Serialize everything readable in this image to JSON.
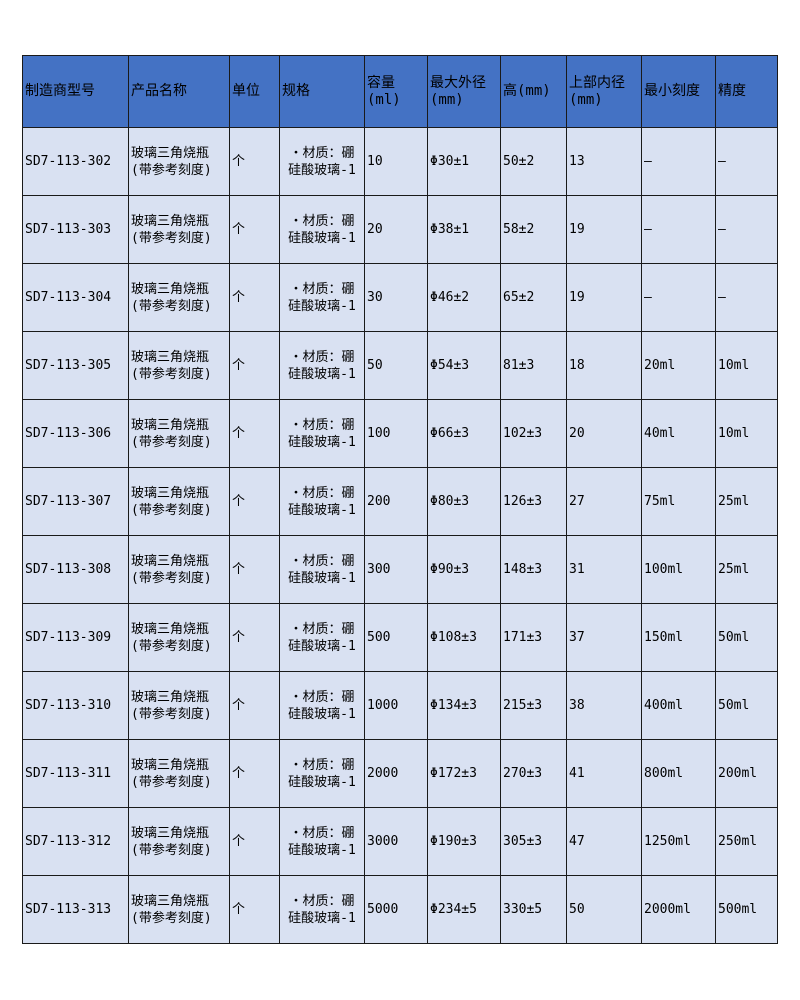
{
  "colors": {
    "header_bg": "#4472C4",
    "row_bg": "#D9E1F2"
  },
  "headers": [
    "制造商型号",
    "产品名称",
    "单位",
    "规格",
    "容量\n(ml)",
    "最大外径\n(mm)",
    "高(mm)",
    "上部内径\n(mm)",
    "最小刻度",
    "精度"
  ],
  "rows": [
    {
      "model": "SD7-113-302",
      "name": "玻璃三角烧瓶\n(带参考刻度)",
      "unit": "个",
      "spec": "・材质：硼\n硅酸玻璃-1",
      "capacity": "10",
      "od": "Φ30±1",
      "height": "50±2",
      "id": "13",
      "min_scale": "–",
      "precision": "–"
    },
    {
      "model": "SD7-113-303",
      "name": "玻璃三角烧瓶\n(带参考刻度)",
      "unit": "个",
      "spec": "・材质：硼\n硅酸玻璃-1",
      "capacity": "20",
      "od": "Φ38±1",
      "height": "58±2",
      "id": "19",
      "min_scale": "–",
      "precision": "–"
    },
    {
      "model": "SD7-113-304",
      "name": "玻璃三角烧瓶\n(带参考刻度)",
      "unit": "个",
      "spec": "・材质：硼\n硅酸玻璃-1",
      "capacity": "30",
      "od": "Φ46±2",
      "height": "65±2",
      "id": "19",
      "min_scale": "–",
      "precision": "–"
    },
    {
      "model": "SD7-113-305",
      "name": "玻璃三角烧瓶\n(带参考刻度)",
      "unit": "个",
      "spec": "・材质：硼\n硅酸玻璃-1",
      "capacity": "50",
      "od": "Φ54±3",
      "height": "81±3",
      "id": "18",
      "min_scale": "20ml",
      "precision": "10ml"
    },
    {
      "model": "SD7-113-306",
      "name": "玻璃三角烧瓶\n(带参考刻度)",
      "unit": "个",
      "spec": "・材质：硼\n硅酸玻璃-1",
      "capacity": "100",
      "od": "Φ66±3",
      "height": "102±3",
      "id": "20",
      "min_scale": "40ml",
      "precision": "10ml"
    },
    {
      "model": "SD7-113-307",
      "name": "玻璃三角烧瓶\n(带参考刻度)",
      "unit": "个",
      "spec": "・材质：硼\n硅酸玻璃-1",
      "capacity": "200",
      "od": "Φ80±3",
      "height": "126±3",
      "id": "27",
      "min_scale": "75ml",
      "precision": "25ml"
    },
    {
      "model": "SD7-113-308",
      "name": "玻璃三角烧瓶\n(带参考刻度)",
      "unit": "个",
      "spec": "・材质：硼\n硅酸玻璃-1",
      "capacity": "300",
      "od": "Φ90±3",
      "height": "148±3",
      "id": "31",
      "min_scale": "100ml",
      "precision": "25ml"
    },
    {
      "model": "SD7-113-309",
      "name": "玻璃三角烧瓶\n(带参考刻度)",
      "unit": "个",
      "spec": "・材质：硼\n硅酸玻璃-1",
      "capacity": "500",
      "od": "Φ108±3",
      "height": "171±3",
      "id": "37",
      "min_scale": "150ml",
      "precision": "50ml"
    },
    {
      "model": "SD7-113-310",
      "name": "玻璃三角烧瓶\n(带参考刻度)",
      "unit": "个",
      "spec": "・材质：硼\n硅酸玻璃-1",
      "capacity": "1000",
      "od": "Φ134±3",
      "height": "215±3",
      "id": "38",
      "min_scale": "400ml",
      "precision": "50ml"
    },
    {
      "model": "SD7-113-311",
      "name": "玻璃三角烧瓶\n(带参考刻度)",
      "unit": "个",
      "spec": "・材质：硼\n硅酸玻璃-1",
      "capacity": "2000",
      "od": "Φ172±3",
      "height": "270±3",
      "id": "41",
      "min_scale": "800ml",
      "precision": "200ml"
    },
    {
      "model": "SD7-113-312",
      "name": "玻璃三角烧瓶\n(带参考刻度)",
      "unit": "个",
      "spec": "・材质：硼\n硅酸玻璃-1",
      "capacity": "3000",
      "od": "Φ190±3",
      "height": "305±3",
      "id": "47",
      "min_scale": "1250ml",
      "precision": "250ml"
    },
    {
      "model": "SD7-113-313",
      "name": "玻璃三角烧瓶\n(带参考刻度)",
      "unit": "个",
      "spec": "・材质：硼\n硅酸玻璃-1",
      "capacity": "5000",
      "od": "Φ234±5",
      "height": "330±5",
      "id": "50",
      "min_scale": "2000ml",
      "precision": "500ml"
    }
  ]
}
